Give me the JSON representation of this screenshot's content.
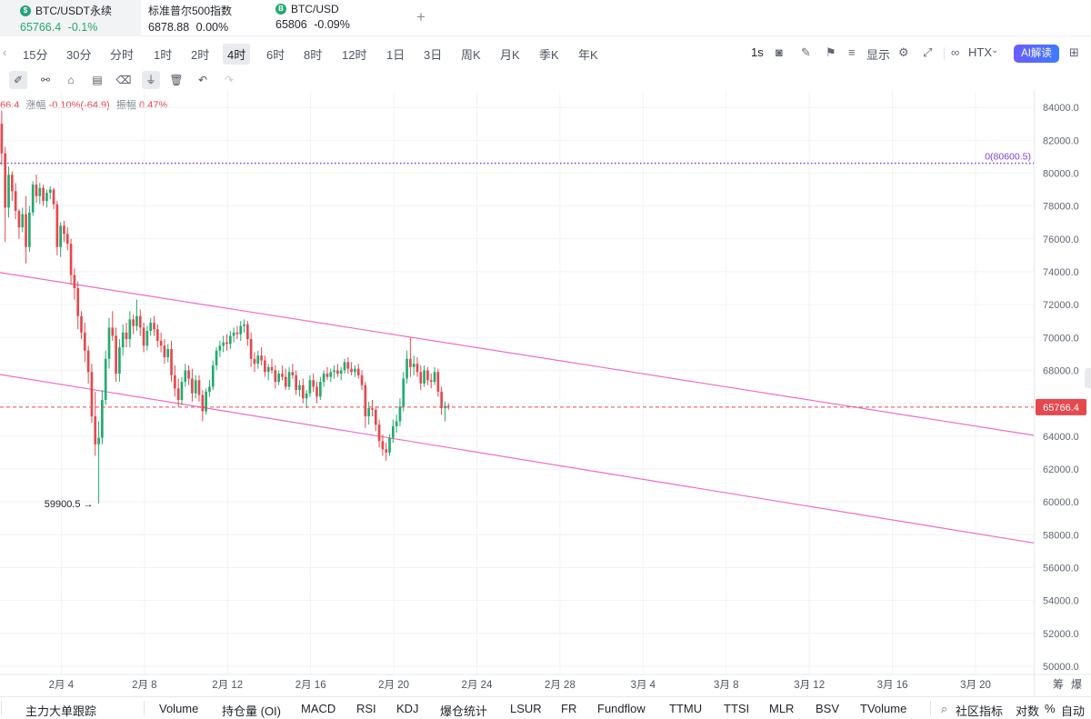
{
  "tickers": [
    {
      "name": "BTC/USDT永续",
      "price": "65766.4",
      "change": "-0.1%",
      "coin_icon": "usdt-coin-icon",
      "coin_color": "#26a17b"
    },
    {
      "name": "标准普尔500指数",
      "price": "6878.88",
      "change": "0.00%"
    },
    {
      "name": "BTC/USD",
      "price": "65806",
      "change": "-0.09%",
      "coin_icon": "bitcoin-coin-icon",
      "coin_color": "#22ab6f"
    }
  ],
  "timeframes": [
    "15分",
    "30分",
    "分时",
    "1时",
    "2时",
    "4时",
    "6时",
    "8时",
    "12时",
    "1日",
    "3日",
    "周K",
    "月K",
    "季K",
    "年K"
  ],
  "selected_timeframe": "4时",
  "toolbar": {
    "interval": "1s",
    "display_label": "显示",
    "exchange": "HTX",
    "ai_label": "AI解读"
  },
  "info": {
    "open_fragment": "66.4",
    "change_label": "涨幅",
    "change_value": "-0.10%(-64.9)",
    "amp_label": "振幅",
    "amp_value": "0.47%"
  },
  "bottom_axis_extra": {
    "a": "筹",
    "b": "爆"
  },
  "indicators": [
    "主力大单跟踪",
    "Volume",
    "持仓量 (OI)",
    "MACD",
    "RSI",
    "KDJ",
    "爆仓统计",
    "LSUR",
    "FR",
    "Fundflow",
    "TTMU",
    "TTSI",
    "MLR",
    "BSV",
    "TVolume"
  ],
  "bottom_right": {
    "community": "社区指标",
    "log": "对数",
    "pct": "%",
    "auto": "自动"
  },
  "chart_data": {
    "type": "candlestick",
    "symbol": "BTC/USDT永续",
    "interval": "4时",
    "y_ticks": [
      84000,
      82000,
      80000,
      78000,
      76000,
      74000,
      72000,
      70000,
      68000,
      66000,
      64000,
      62000,
      60000,
      58000,
      56000,
      54000,
      52000,
      50000
    ],
    "ylim": [
      49500,
      85000
    ],
    "x_ticks": [
      "2月 4",
      "2月 8",
      "2月 12",
      "2月 16",
      "2月 20",
      "2月 24",
      "2月 28",
      "3月 4",
      "3月 8",
      "3月 12",
      "3月 16",
      "3月 20"
    ],
    "x_tick_days": [
      4,
      8,
      12,
      16,
      20,
      24,
      28,
      32,
      36,
      40,
      44,
      48
    ],
    "xlim_days": [
      1.05,
      50.8
    ],
    "current_price": 65766.4,
    "current_price_label": "65766.4",
    "horizontal_level": {
      "value": 80600.5,
      "label": "0(80600.5)"
    },
    "low_annotation": {
      "value": 59900.5,
      "label": "59900.5",
      "day": 6.1
    },
    "channel_lines": [
      {
        "from_day": 1.05,
        "from_value": 73950,
        "to_day": 50.8,
        "to_value": 64050
      },
      {
        "from_day": 1.05,
        "from_value": 67750,
        "to_day": 50.8,
        "to_value": 57500
      }
    ],
    "colors": {
      "up": "#22ab6f",
      "down": "#e5484d",
      "channel": "#f26bc4",
      "level": "#7b3fe4",
      "price_line": "#e5484d"
    },
    "grid": true,
    "candles": [
      {
        "o": 83000,
        "h": 83800,
        "l": 80500,
        "c": 81200
      },
      {
        "o": 81200,
        "h": 81600,
        "l": 75800,
        "c": 77900
      },
      {
        "o": 77900,
        "h": 80400,
        "l": 77300,
        "c": 79900
      },
      {
        "o": 79900,
        "h": 80100,
        "l": 78300,
        "c": 78900
      },
      {
        "o": 78900,
        "h": 79400,
        "l": 77200,
        "c": 77700
      },
      {
        "o": 77700,
        "h": 77800,
        "l": 76000,
        "c": 76700
      },
      {
        "o": 76700,
        "h": 77900,
        "l": 76400,
        "c": 77500
      },
      {
        "o": 77500,
        "h": 78600,
        "l": 74500,
        "c": 75500
      },
      {
        "o": 75500,
        "h": 78000,
        "l": 75200,
        "c": 77600
      },
      {
        "o": 77600,
        "h": 79500,
        "l": 77400,
        "c": 79300
      },
      {
        "o": 79300,
        "h": 79900,
        "l": 78200,
        "c": 78600
      },
      {
        "o": 78600,
        "h": 79400,
        "l": 78100,
        "c": 79100
      },
      {
        "o": 79100,
        "h": 79300,
        "l": 78000,
        "c": 78300
      },
      {
        "o": 78300,
        "h": 79000,
        "l": 77900,
        "c": 78800
      },
      {
        "o": 78800,
        "h": 79200,
        "l": 78400,
        "c": 79000
      },
      {
        "o": 79000,
        "h": 79100,
        "l": 77800,
        "c": 78100
      },
      {
        "o": 78100,
        "h": 78300,
        "l": 75000,
        "c": 75500
      },
      {
        "o": 75500,
        "h": 77000,
        "l": 74900,
        "c": 76800
      },
      {
        "o": 76800,
        "h": 77100,
        "l": 75800,
        "c": 76300
      },
      {
        "o": 76300,
        "h": 76700,
        "l": 75300,
        "c": 75700
      },
      {
        "o": 75700,
        "h": 76000,
        "l": 73200,
        "c": 73800
      },
      {
        "o": 73800,
        "h": 74200,
        "l": 72300,
        "c": 73000
      },
      {
        "o": 73000,
        "h": 73400,
        "l": 70500,
        "c": 71300
      },
      {
        "o": 71300,
        "h": 71600,
        "l": 69900,
        "c": 70300
      },
      {
        "o": 70300,
        "h": 70900,
        "l": 68500,
        "c": 69200
      },
      {
        "o": 69200,
        "h": 69500,
        "l": 67200,
        "c": 67900
      },
      {
        "o": 67900,
        "h": 68400,
        "l": 64800,
        "c": 65200
      },
      {
        "o": 65200,
        "h": 66700,
        "l": 62800,
        "c": 63500
      },
      {
        "o": 63500,
        "h": 64900,
        "l": 59900.5,
        "c": 63900
      },
      {
        "o": 63900,
        "h": 66800,
        "l": 63500,
        "c": 66200
      },
      {
        "o": 66200,
        "h": 69200,
        "l": 65900,
        "c": 68700
      },
      {
        "o": 68700,
        "h": 71200,
        "l": 68100,
        "c": 70600
      },
      {
        "o": 70600,
        "h": 71600,
        "l": 69800,
        "c": 70100
      },
      {
        "o": 70100,
        "h": 70600,
        "l": 67300,
        "c": 67800
      },
      {
        "o": 67800,
        "h": 69900,
        "l": 67300,
        "c": 69400
      },
      {
        "o": 69400,
        "h": 70800,
        "l": 68900,
        "c": 70300
      },
      {
        "o": 70300,
        "h": 70900,
        "l": 69400,
        "c": 69900
      },
      {
        "o": 69900,
        "h": 71600,
        "l": 69400,
        "c": 71100
      },
      {
        "o": 71100,
        "h": 71400,
        "l": 70200,
        "c": 70700
      },
      {
        "o": 70700,
        "h": 72300,
        "l": 70400,
        "c": 71300
      },
      {
        "o": 71300,
        "h": 71700,
        "l": 70100,
        "c": 70600
      },
      {
        "o": 70600,
        "h": 70900,
        "l": 69100,
        "c": 69500
      },
      {
        "o": 69500,
        "h": 70700,
        "l": 69200,
        "c": 70400
      },
      {
        "o": 70400,
        "h": 71200,
        "l": 70100,
        "c": 70900
      },
      {
        "o": 70900,
        "h": 71300,
        "l": 70100,
        "c": 70500
      },
      {
        "o": 70500,
        "h": 70800,
        "l": 69400,
        "c": 69800
      },
      {
        "o": 69800,
        "h": 70300,
        "l": 69100,
        "c": 69500
      },
      {
        "o": 69500,
        "h": 69900,
        "l": 68400,
        "c": 68800
      },
      {
        "o": 68800,
        "h": 69600,
        "l": 68500,
        "c": 69300
      },
      {
        "o": 69300,
        "h": 69800,
        "l": 67300,
        "c": 67700
      },
      {
        "o": 67700,
        "h": 68300,
        "l": 66400,
        "c": 66900
      },
      {
        "o": 66900,
        "h": 67500,
        "l": 65800,
        "c": 66200
      },
      {
        "o": 66200,
        "h": 67600,
        "l": 65900,
        "c": 67300
      },
      {
        "o": 67300,
        "h": 68400,
        "l": 67000,
        "c": 68000
      },
      {
        "o": 68000,
        "h": 68300,
        "l": 67100,
        "c": 67500
      },
      {
        "o": 67500,
        "h": 68100,
        "l": 66100,
        "c": 66600
      },
      {
        "o": 66600,
        "h": 67700,
        "l": 66300,
        "c": 67400
      },
      {
        "o": 67400,
        "h": 67700,
        "l": 66100,
        "c": 66500
      },
      {
        "o": 66500,
        "h": 66800,
        "l": 64900,
        "c": 65500
      },
      {
        "o": 65500,
        "h": 66900,
        "l": 65300,
        "c": 66700
      },
      {
        "o": 66700,
        "h": 67400,
        "l": 66400,
        "c": 67000
      },
      {
        "o": 67000,
        "h": 68600,
        "l": 66800,
        "c": 68300
      },
      {
        "o": 68300,
        "h": 69400,
        "l": 68000,
        "c": 69200
      },
      {
        "o": 69200,
        "h": 69800,
        "l": 68800,
        "c": 69500
      },
      {
        "o": 69500,
        "h": 70100,
        "l": 69100,
        "c": 69700
      },
      {
        "o": 69700,
        "h": 70200,
        "l": 69200,
        "c": 69600
      },
      {
        "o": 69600,
        "h": 70400,
        "l": 69300,
        "c": 70100
      },
      {
        "o": 70100,
        "h": 70600,
        "l": 69700,
        "c": 70300
      },
      {
        "o": 70300,
        "h": 70700,
        "l": 69900,
        "c": 70200
      },
      {
        "o": 70200,
        "h": 71000,
        "l": 69800,
        "c": 70700
      },
      {
        "o": 70700,
        "h": 71100,
        "l": 70300,
        "c": 70800
      },
      {
        "o": 70800,
        "h": 71000,
        "l": 69500,
        "c": 69900
      },
      {
        "o": 69900,
        "h": 70300,
        "l": 68200,
        "c": 68700
      },
      {
        "o": 68700,
        "h": 69100,
        "l": 67900,
        "c": 68400
      },
      {
        "o": 68400,
        "h": 69200,
        "l": 68100,
        "c": 68900
      },
      {
        "o": 68900,
        "h": 69400,
        "l": 68300,
        "c": 68600
      },
      {
        "o": 68600,
        "h": 68900,
        "l": 67600,
        "c": 67900
      },
      {
        "o": 67900,
        "h": 68400,
        "l": 67400,
        "c": 68200
      },
      {
        "o": 68200,
        "h": 68700,
        "l": 67800,
        "c": 68000
      },
      {
        "o": 68000,
        "h": 68300,
        "l": 66900,
        "c": 67300
      },
      {
        "o": 67300,
        "h": 68000,
        "l": 67100,
        "c": 67800
      },
      {
        "o": 67800,
        "h": 68300,
        "l": 67400,
        "c": 67600
      },
      {
        "o": 67600,
        "h": 68100,
        "l": 66800,
        "c": 67000
      },
      {
        "o": 67000,
        "h": 68200,
        "l": 66800,
        "c": 67900
      },
      {
        "o": 67900,
        "h": 68400,
        "l": 67500,
        "c": 67700
      },
      {
        "o": 67700,
        "h": 68000,
        "l": 66500,
        "c": 66800
      },
      {
        "o": 66800,
        "h": 67400,
        "l": 66400,
        "c": 67100
      },
      {
        "o": 67100,
        "h": 67500,
        "l": 66000,
        "c": 66300
      },
      {
        "o": 66300,
        "h": 66800,
        "l": 65700,
        "c": 66600
      },
      {
        "o": 66600,
        "h": 67700,
        "l": 66400,
        "c": 67400
      },
      {
        "o": 67400,
        "h": 67800,
        "l": 66700,
        "c": 67000
      },
      {
        "o": 67000,
        "h": 67300,
        "l": 66000,
        "c": 66400
      },
      {
        "o": 66400,
        "h": 67600,
        "l": 66200,
        "c": 67300
      },
      {
        "o": 67300,
        "h": 68000,
        "l": 67000,
        "c": 67800
      },
      {
        "o": 67800,
        "h": 68200,
        "l": 67400,
        "c": 67600
      },
      {
        "o": 67600,
        "h": 68100,
        "l": 67300,
        "c": 67900
      },
      {
        "o": 67900,
        "h": 68300,
        "l": 67500,
        "c": 68000
      },
      {
        "o": 68000,
        "h": 68400,
        "l": 67600,
        "c": 67800
      },
      {
        "o": 67800,
        "h": 68200,
        "l": 67400,
        "c": 68000
      },
      {
        "o": 68000,
        "h": 68700,
        "l": 67800,
        "c": 68500
      },
      {
        "o": 68500,
        "h": 68800,
        "l": 67800,
        "c": 68100
      },
      {
        "o": 68100,
        "h": 68500,
        "l": 67700,
        "c": 67900
      },
      {
        "o": 67900,
        "h": 68300,
        "l": 67600,
        "c": 68100
      },
      {
        "o": 68100,
        "h": 68400,
        "l": 67500,
        "c": 67700
      },
      {
        "o": 67700,
        "h": 68000,
        "l": 66800,
        "c": 67100
      },
      {
        "o": 67100,
        "h": 67300,
        "l": 64500,
        "c": 65200
      },
      {
        "o": 65200,
        "h": 66100,
        "l": 64700,
        "c": 65700
      },
      {
        "o": 65700,
        "h": 66200,
        "l": 65200,
        "c": 65600
      },
      {
        "o": 65600,
        "h": 65800,
        "l": 64300,
        "c": 64700
      },
      {
        "o": 64700,
        "h": 65000,
        "l": 63300,
        "c": 63700
      },
      {
        "o": 63700,
        "h": 64100,
        "l": 62800,
        "c": 63200
      },
      {
        "o": 63200,
        "h": 63600,
        "l": 62500,
        "c": 63000
      },
      {
        "o": 63000,
        "h": 64100,
        "l": 62800,
        "c": 63900
      },
      {
        "o": 63900,
        "h": 65000,
        "l": 63600,
        "c": 64600
      },
      {
        "o": 64600,
        "h": 65300,
        "l": 64200,
        "c": 64900
      },
      {
        "o": 64900,
        "h": 66300,
        "l": 64600,
        "c": 65800
      },
      {
        "o": 65800,
        "h": 67900,
        "l": 65500,
        "c": 67500
      },
      {
        "o": 67500,
        "h": 69200,
        "l": 67200,
        "c": 68700
      },
      {
        "o": 68700,
        "h": 70000,
        "l": 67600,
        "c": 68200
      },
      {
        "o": 68200,
        "h": 68900,
        "l": 67700,
        "c": 68400
      },
      {
        "o": 68400,
        "h": 68800,
        "l": 67600,
        "c": 67900
      },
      {
        "o": 67900,
        "h": 68300,
        "l": 66800,
        "c": 67200
      },
      {
        "o": 67200,
        "h": 68300,
        "l": 67000,
        "c": 68000
      },
      {
        "o": 68000,
        "h": 68200,
        "l": 67100,
        "c": 67400
      },
      {
        "o": 67400,
        "h": 67800,
        "l": 66900,
        "c": 67300
      },
      {
        "o": 67300,
        "h": 68200,
        "l": 67100,
        "c": 67900
      },
      {
        "o": 67900,
        "h": 68100,
        "l": 66400,
        "c": 66700
      },
      {
        "o": 66700,
        "h": 67000,
        "l": 65300,
        "c": 65700
      },
      {
        "o": 65700,
        "h": 66100,
        "l": 64900,
        "c": 65831
      },
      {
        "o": 65831,
        "h": 66000,
        "l": 65600,
        "c": 65766.4
      }
    ]
  }
}
